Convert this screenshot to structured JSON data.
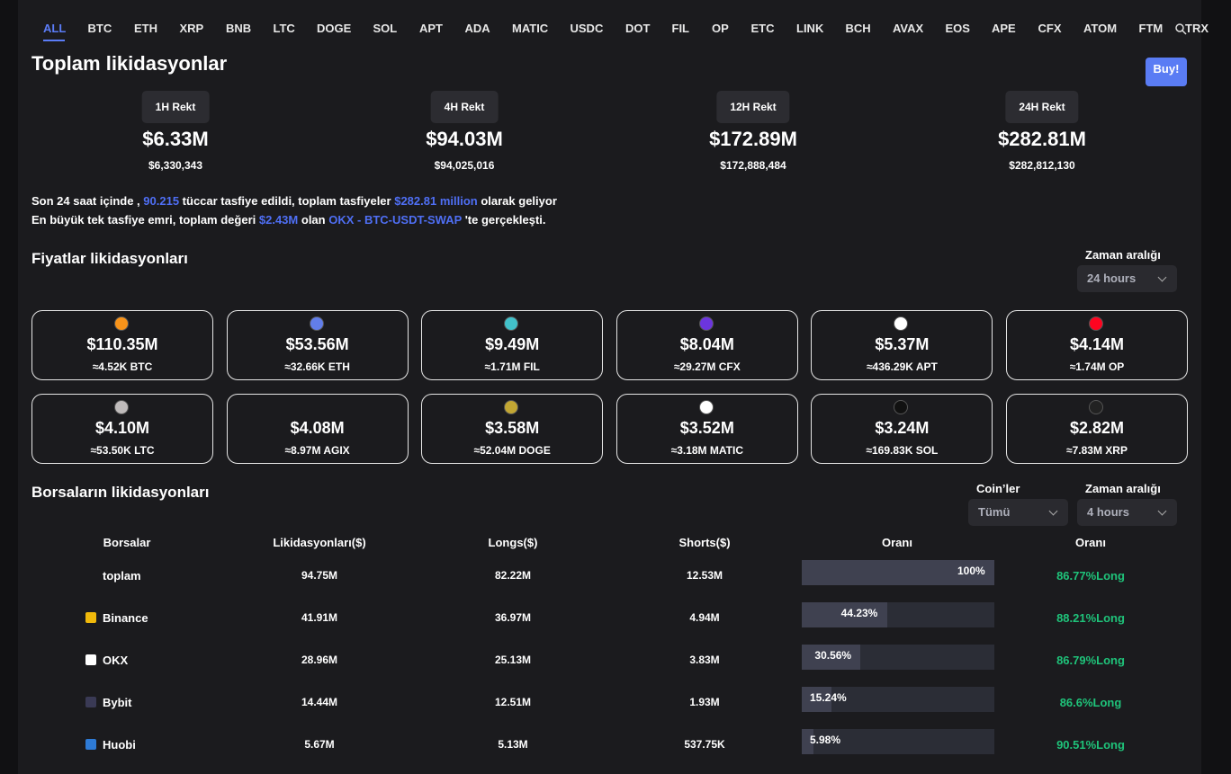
{
  "tabs": [
    "ALL",
    "BTC",
    "ETH",
    "XRP",
    "BNB",
    "LTC",
    "DOGE",
    "SOL",
    "APT",
    "ADA",
    "MATIC",
    "USDC",
    "DOT",
    "FIL",
    "OP",
    "ETC",
    "LINK",
    "BCH",
    "AVAX",
    "EOS",
    "APE",
    "CFX",
    "ATOM",
    "FTM",
    "TRX"
  ],
  "summary": {
    "title": "Toplam likidasyonlar",
    "buy_button": "Buy!",
    "rekt": [
      {
        "label": "1H Rekt",
        "short": "$6.33M",
        "full": "$6,330,343"
      },
      {
        "label": "4H Rekt",
        "short": "$94.03M",
        "full": "$94,025,016"
      },
      {
        "label": "12H Rekt",
        "short": "$172.89M",
        "full": "$172,888,484"
      },
      {
        "label": "24H Rekt",
        "short": "$282.81M",
        "full": "$282,812,130"
      }
    ],
    "line1": [
      "Son 24 saat içinde ,",
      "90.215",
      "tüccar tasfiye edildi, toplam tasfiyeler",
      "$282.81 million",
      "olarak geliyor"
    ],
    "line2": [
      "En büyük tek tasfiye emri, toplam değeri",
      "$2.43M",
      "olan",
      "OKX - BTC-USDT-SWAP",
      "'te gerçekleşti."
    ]
  },
  "prices": {
    "title": "Fiyatlar likidasyonları",
    "filter_label": "Zaman aralığı",
    "filter_value": "24 hours",
    "cards": [
      {
        "amount": "$110.35M",
        "sub": "≈4.52K BTC"
      },
      {
        "amount": "$53.56M",
        "sub": "≈32.66K ETH"
      },
      {
        "amount": "$9.49M",
        "sub": "≈1.71M FIL"
      },
      {
        "amount": "$8.04M",
        "sub": "≈29.27M CFX"
      },
      {
        "amount": "$5.37M",
        "sub": "≈436.29K APT"
      },
      {
        "amount": "$4.14M",
        "sub": "≈1.74M OP"
      },
      {
        "amount": "$4.10M",
        "sub": "≈53.50K LTC"
      },
      {
        "amount": "$4.08M",
        "sub": "≈8.97M AGIX"
      },
      {
        "amount": "$3.58M",
        "sub": "≈52.04M DOGE"
      },
      {
        "amount": "$3.52M",
        "sub": "≈3.18M MATIC"
      },
      {
        "amount": "$3.24M",
        "sub": "≈169.83K SOL"
      },
      {
        "amount": "$2.82M",
        "sub": "≈7.83M XRP"
      }
    ]
  },
  "exchanges": {
    "title": "Borsaların likidasyonları",
    "filters": [
      {
        "label": "Coin’ler",
        "value": "Tümü"
      },
      {
        "label": "Zaman aralığı",
        "value": "4 hours"
      }
    ],
    "headers": [
      "Borsalar",
      "Likidasyonları($)",
      "Longs($)",
      "Shorts($)",
      "Oranı",
      "Oranı"
    ],
    "rows": [
      [
        "toplam",
        "94.75M",
        "82.22M",
        "12.53M",
        "100%",
        "86.77%Long"
      ],
      [
        "Binance",
        "41.91M",
        "36.97M",
        "4.94M",
        "44.23%",
        "88.21%Long"
      ],
      [
        "OKX",
        "28.96M",
        "25.13M",
        "3.83M",
        "30.56%",
        "86.79%Long"
      ],
      [
        "Bybit",
        "14.44M",
        "12.51M",
        "1.93M",
        "15.24%",
        "86.6%Long"
      ],
      [
        "Huobi",
        "5.67M",
        "5.13M",
        "537.75K",
        "5.98%",
        "90.51%Long"
      ]
    ]
  }
}
